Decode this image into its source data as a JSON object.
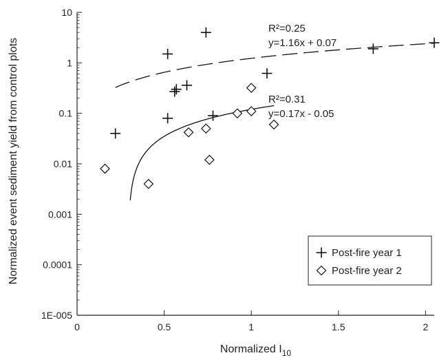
{
  "chart_data": {
    "type": "scatter",
    "xlabel": "Normalized I",
    "xlabel_subscript": "10",
    "ylabel": "Normalized event sediment yield from control plots",
    "xlim": [
      0,
      2.05
    ],
    "ylim": [
      1e-05,
      10
    ],
    "yscale": "log",
    "x_ticks": [
      {
        "value": 0,
        "label": "0"
      },
      {
        "value": 0.5,
        "label": "0.5"
      },
      {
        "value": 1,
        "label": "1"
      },
      {
        "value": 1.5,
        "label": "1.5"
      },
      {
        "value": 2,
        "label": "2"
      }
    ],
    "y_ticks": [
      {
        "value": 1e-05,
        "label": "1E-005"
      },
      {
        "value": 0.0001,
        "label": "0.0001"
      },
      {
        "value": 0.001,
        "label": "0.001"
      },
      {
        "value": 0.01,
        "label": "0.01"
      },
      {
        "value": 0.1,
        "label": "0.1"
      },
      {
        "value": 1,
        "label": "1"
      },
      {
        "value": 10,
        "label": "10"
      }
    ],
    "legend_position": "bottom-right",
    "series": [
      {
        "name": "Post-fire year 1",
        "marker": "plus",
        "points": [
          {
            "x": 0.22,
            "y": 0.04
          },
          {
            "x": 0.52,
            "y": 0.08
          },
          {
            "x": 0.52,
            "y": 1.5
          },
          {
            "x": 0.56,
            "y": 0.27
          },
          {
            "x": 0.57,
            "y": 0.3
          },
          {
            "x": 0.63,
            "y": 0.36
          },
          {
            "x": 0.74,
            "y": 4.0
          },
          {
            "x": 0.78,
            "y": 0.09
          },
          {
            "x": 1.09,
            "y": 0.62
          },
          {
            "x": 1.7,
            "y": 1.9
          },
          {
            "x": 2.05,
            "y": 2.5
          }
        ],
        "fit": {
          "label_r2": "R²=0.25",
          "label_eq": "y=1.16x + 0.07",
          "slope": 1.16,
          "intercept": 0.07,
          "x_range": [
            0.22,
            2.05
          ],
          "style": "dashed"
        }
      },
      {
        "name": "Post-fire year 2",
        "marker": "diamond",
        "points": [
          {
            "x": 0.16,
            "y": 0.008
          },
          {
            "x": 0.41,
            "y": 0.004
          },
          {
            "x": 0.64,
            "y": 0.042
          },
          {
            "x": 0.74,
            "y": 0.05
          },
          {
            "x": 0.76,
            "y": 0.012
          },
          {
            "x": 0.92,
            "y": 0.1
          },
          {
            "x": 1.0,
            "y": 0.32
          },
          {
            "x": 1.0,
            "y": 0.11
          },
          {
            "x": 1.13,
            "y": 0.06
          }
        ],
        "fit": {
          "label_r2": "R²=0.31",
          "label_eq": "y=0.17x - 0.05",
          "slope": 0.17,
          "intercept": -0.05,
          "x_range": [
            0.3053,
            1.13
          ],
          "style": "solid"
        }
      }
    ]
  }
}
